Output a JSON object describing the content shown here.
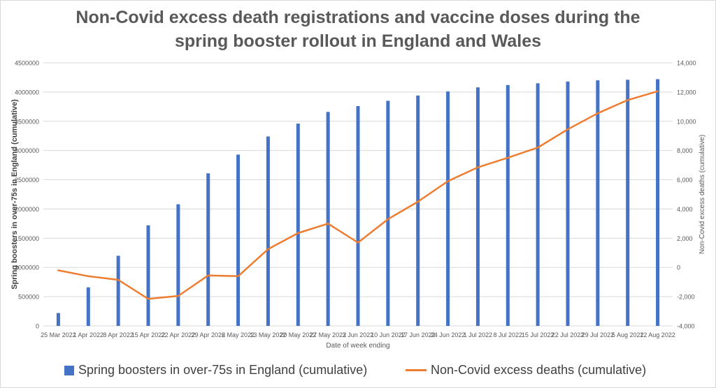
{
  "title": {
    "line1": "Non-Covid excess death registrations and vaccine doses during the",
    "line2": "spring booster rollout in England and Wales"
  },
  "colors": {
    "bars": "#4472c4",
    "line": "#ed7d31",
    "grid": "#d9d9d9",
    "text": "#595959"
  },
  "chart_data": {
    "type": "bar",
    "title": "Non-Covid excess death registrations and vaccine doses during the spring booster rollout in England and Wales",
    "xlabel": "Date of week ending",
    "ylabel": "Spring boosters in over-75s in England (cumulative)",
    "y2label": "Non-Covid excess deaths (cumulative)",
    "categories": [
      "25 Mar 2022",
      "1 Apr 2022",
      "8 Apr 2022",
      "15 Apr 2022",
      "22 Apr 2022",
      "29 Apr 2022",
      "6 May 2022",
      "13 May 2022",
      "20 May 2022",
      "27 May 2022",
      "3 Jun 2022",
      "10 Jun 2022",
      "17 Jun 2022",
      "24 Jun 2022",
      "1 Jul 2022",
      "8 Jul 2022",
      "15 Jul 2022",
      "22 Jul 2022",
      "29 Jul 2022",
      "5 Aug 2022",
      "12 Aug 2022"
    ],
    "ylim": [
      0,
      4500000
    ],
    "y2lim": [
      -4000,
      14000
    ],
    "yticks": [
      "0",
      "500000",
      "1000000",
      "1500000",
      "2000000",
      "2500000",
      "3000000",
      "3500000",
      "4000000",
      "4500000"
    ],
    "y2ticks": [
      "-4,000",
      "-2,000",
      "0",
      "2,000",
      "4,000",
      "6,000",
      "8,000",
      "10,000",
      "12,000",
      "14,000"
    ],
    "grid": true,
    "legend_position": "bottom",
    "series": [
      {
        "name": "Spring boosters in over-75s in England (cumulative)",
        "kind": "bar",
        "axis": "left",
        "values": [
          220000,
          660000,
          1200000,
          1720000,
          2080000,
          2610000,
          2930000,
          3240000,
          3460000,
          3660000,
          3760000,
          3850000,
          3940000,
          4010000,
          4080000,
          4120000,
          4150000,
          4180000,
          4200000,
          4210000,
          4220000
        ]
      },
      {
        "name": "Non-Covid excess deaths (cumulative)",
        "kind": "line",
        "axis": "right",
        "values": [
          -200,
          -600,
          -850,
          -2150,
          -1950,
          -550,
          -600,
          1250,
          2350,
          3000,
          1700,
          3300,
          4500,
          5900,
          6850,
          7500,
          8200,
          9450,
          10550,
          11450,
          12050
        ]
      }
    ]
  }
}
